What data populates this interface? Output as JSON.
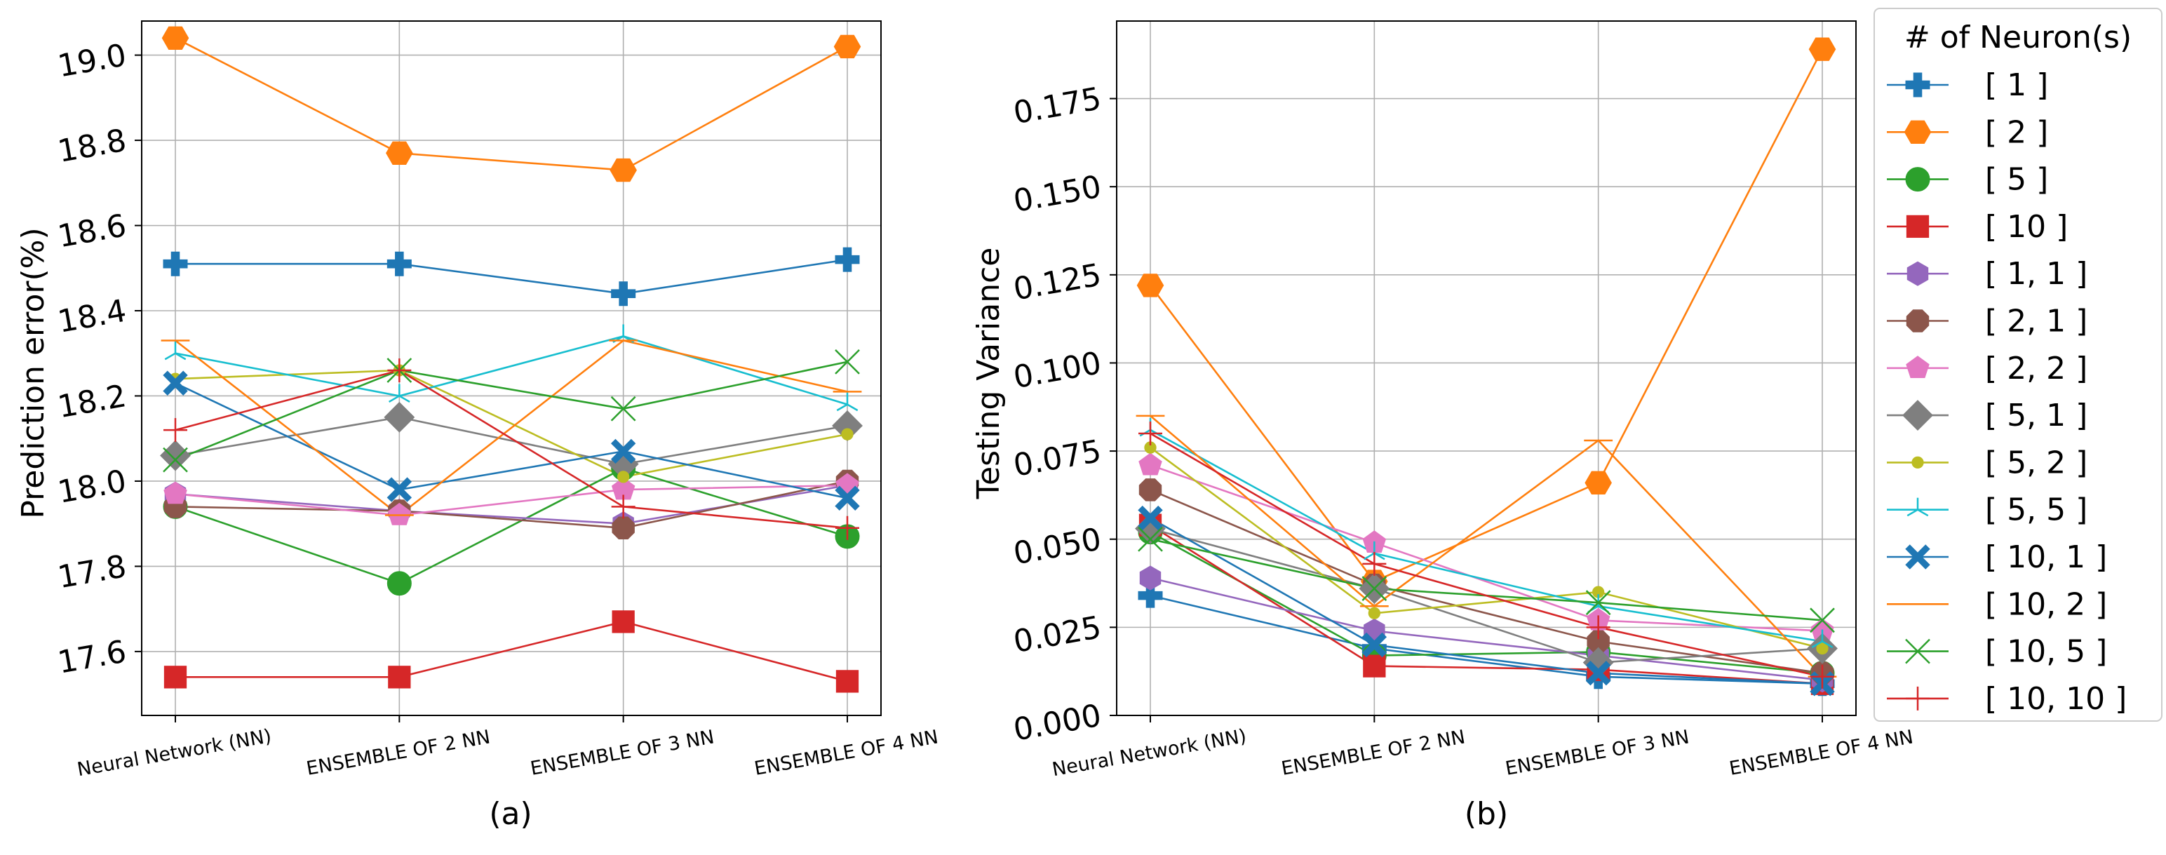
{
  "legend_title": "# of Neuron(s)",
  "chart_data": [
    {
      "type": "line",
      "subplot_label": "(a)",
      "title": "",
      "xlabel": "",
      "ylabel": "Prediction error(%)",
      "categories": [
        "Neural Network (NN)",
        "ENSEMBLE OF 2 NN",
        "ENSEMBLE OF 3 NN",
        "ENSEMBLE OF 4 NN"
      ],
      "ylim": [
        17.45,
        19.08
      ],
      "yticks": [
        {
          "value": 17.6,
          "label": "17.6"
        },
        {
          "value": 17.8,
          "label": "17.8"
        },
        {
          "value": 18.0,
          "label": "18.0"
        },
        {
          "value": 18.2,
          "label": "18.2"
        },
        {
          "value": 18.4,
          "label": "18.4"
        },
        {
          "value": 18.6,
          "label": "18.6"
        },
        {
          "value": 18.8,
          "label": "18.8"
        },
        {
          "value": 19.0,
          "label": "19.0"
        }
      ],
      "grid": true,
      "series": [
        {
          "name": "[ 1 ]",
          "values": [
            18.51,
            18.51,
            18.44,
            18.52
          ]
        },
        {
          "name": "[ 2 ]",
          "values": [
            19.04,
            18.77,
            18.73,
            19.02
          ]
        },
        {
          "name": "[ 5 ]",
          "values": [
            17.94,
            17.76,
            18.03,
            17.87
          ]
        },
        {
          "name": "[ 10 ]",
          "values": [
            17.54,
            17.54,
            17.67,
            17.53
          ]
        },
        {
          "name": "[ 1, 1 ]",
          "values": [
            17.97,
            17.93,
            17.9,
            17.99
          ]
        },
        {
          "name": "[ 2, 1 ]",
          "values": [
            17.94,
            17.93,
            17.89,
            18.0
          ]
        },
        {
          "name": "[ 2, 2 ]",
          "values": [
            17.97,
            17.92,
            17.98,
            17.99
          ]
        },
        {
          "name": "[ 5, 1 ]",
          "values": [
            18.06,
            18.15,
            18.04,
            18.13
          ]
        },
        {
          "name": "[ 5, 2 ]",
          "values": [
            18.24,
            18.26,
            18.01,
            18.11
          ]
        },
        {
          "name": "[ 5, 5 ]",
          "values": [
            18.3,
            18.2,
            18.34,
            18.18
          ]
        },
        {
          "name": "[ 10, 1 ]",
          "values": [
            18.23,
            17.98,
            18.07,
            17.96
          ]
        },
        {
          "name": "[ 10, 2 ]",
          "values": [
            18.33,
            17.92,
            18.33,
            18.21
          ]
        },
        {
          "name": "[ 10, 5 ]",
          "values": [
            18.05,
            18.26,
            18.17,
            18.28
          ]
        },
        {
          "name": "[ 10, 10 ]",
          "values": [
            18.12,
            18.26,
            17.94,
            17.89
          ]
        }
      ]
    },
    {
      "type": "line",
      "subplot_label": "(b)",
      "title": "",
      "xlabel": "",
      "ylabel": "Testing Variance",
      "categories": [
        "Neural Network (NN)",
        "ENSEMBLE OF 2 NN",
        "ENSEMBLE OF 3 NN",
        "ENSEMBLE OF 4 NN"
      ],
      "ylim": [
        0.0,
        0.197
      ],
      "yticks": [
        {
          "value": 0.0,
          "label": "0.000"
        },
        {
          "value": 0.025,
          "label": "0.025"
        },
        {
          "value": 0.05,
          "label": "0.050"
        },
        {
          "value": 0.075,
          "label": "0.075"
        },
        {
          "value": 0.1,
          "label": "0.100"
        },
        {
          "value": 0.125,
          "label": "0.125"
        },
        {
          "value": 0.15,
          "label": "0.150"
        },
        {
          "value": 0.175,
          "label": "0.175"
        }
      ],
      "grid": true,
      "series": [
        {
          "name": "[ 1 ]",
          "values": [
            0.034,
            0.019,
            0.011,
            0.009
          ]
        },
        {
          "name": "[ 2 ]",
          "values": [
            0.122,
            0.038,
            0.066,
            0.189
          ]
        },
        {
          "name": "[ 5 ]",
          "values": [
            0.052,
            0.017,
            0.018,
            0.012
          ]
        },
        {
          "name": "[ 10 ]",
          "values": [
            0.054,
            0.014,
            0.013,
            0.009
          ]
        },
        {
          "name": "[ 1, 1 ]",
          "values": [
            0.039,
            0.024,
            0.017,
            0.01
          ]
        },
        {
          "name": "[ 2, 1 ]",
          "values": [
            0.064,
            0.037,
            0.021,
            0.012
          ]
        },
        {
          "name": "[ 2, 2 ]",
          "values": [
            0.071,
            0.049,
            0.027,
            0.024
          ]
        },
        {
          "name": "[ 5, 1 ]",
          "values": [
            0.053,
            0.036,
            0.015,
            0.019
          ]
        },
        {
          "name": "[ 5, 2 ]",
          "values": [
            0.076,
            0.029,
            0.035,
            0.019
          ]
        },
        {
          "name": "[ 5, 5 ]",
          "values": [
            0.081,
            0.046,
            0.031,
            0.021
          ]
        },
        {
          "name": "[ 10, 1 ]",
          "values": [
            0.056,
            0.02,
            0.012,
            0.009
          ]
        },
        {
          "name": "[ 10, 2 ]",
          "values": [
            0.085,
            0.031,
            0.078,
            0.011
          ]
        },
        {
          "name": "[ 10, 5 ]",
          "values": [
            0.05,
            0.036,
            0.032,
            0.027
          ]
        },
        {
          "name": "[ 10, 10 ]",
          "values": [
            0.08,
            0.043,
            0.025,
            0.011
          ]
        }
      ]
    }
  ],
  "series_style": [
    {
      "color": "#1f77b4",
      "marker": "plus-filled"
    },
    {
      "color": "#ff7f0e",
      "marker": "hexagon-flat"
    },
    {
      "color": "#2ca02c",
      "marker": "circle"
    },
    {
      "color": "#d62728",
      "marker": "square"
    },
    {
      "color": "#9467bd",
      "marker": "hexagon-pointy"
    },
    {
      "color": "#8c564b",
      "marker": "octagon"
    },
    {
      "color": "#e377c2",
      "marker": "pentagon"
    },
    {
      "color": "#7f7f7f",
      "marker": "diamond"
    },
    {
      "color": "#bcbd22",
      "marker": "dot"
    },
    {
      "color": "#17becf",
      "marker": "tri-up"
    },
    {
      "color": "#1f77b4",
      "marker": "x-filled"
    },
    {
      "color": "#ff7f0e",
      "marker": "hline"
    },
    {
      "color": "#2ca02c",
      "marker": "x"
    },
    {
      "color": "#d62728",
      "marker": "plus"
    }
  ]
}
